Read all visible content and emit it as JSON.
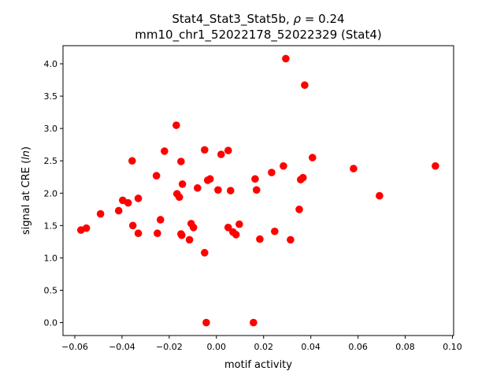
{
  "chart_data": {
    "type": "scatter",
    "title_line1": "Stat4_Stat3_Stat5b, ",
    "title_rho": "ρ",
    "title_rho_value": " = 0.24",
    "title_line2": "mm10_chr1_52022178_52022329 (Stat4)",
    "xlabel": "motif activity",
    "ylabel_prefix": "signal at CRE (",
    "ylabel_italic": "ln",
    "ylabel_suffix": ")",
    "xlim": [
      -0.065,
      0.1005
    ],
    "ylim": [
      -0.2,
      4.28
    ],
    "xticks": [
      -0.06,
      -0.04,
      -0.02,
      0.0,
      0.02,
      0.04,
      0.06,
      0.08,
      0.1
    ],
    "xtick_labels": [
      "−0.06",
      "−0.04",
      "−0.02",
      "0.00",
      "0.02",
      "0.04",
      "0.06",
      "0.08",
      "0.10"
    ],
    "yticks": [
      0.0,
      0.5,
      1.0,
      1.5,
      2.0,
      2.5,
      3.0,
      3.5,
      4.0
    ],
    "ytick_labels": [
      "0.0",
      "0.5",
      "1.0",
      "1.5",
      "2.0",
      "2.5",
      "3.0",
      "3.5",
      "4.0"
    ],
    "grid": false,
    "marker_color": "#ff0000",
    "x": [
      -0.0574,
      -0.0551,
      -0.0491,
      -0.0414,
      -0.0397,
      -0.0374,
      -0.0357,
      -0.0354,
      -0.0331,
      -0.0331,
      -0.0254,
      -0.025,
      -0.0237,
      -0.022,
      -0.017,
      -0.0167,
      -0.0157,
      -0.015,
      -0.015,
      -0.0147,
      -0.0144,
      -0.0114,
      -0.0107,
      -0.0097,
      -0.008,
      -0.005,
      -0.005,
      -0.0043,
      -0.0037,
      -0.0027,
      0.0007,
      0.002,
      0.005,
      0.005,
      0.006,
      0.007,
      0.0083,
      0.0097,
      0.0157,
      0.0164,
      0.017,
      0.0184,
      0.0234,
      0.0247,
      0.0284,
      0.0294,
      0.0314,
      0.0351,
      0.0357,
      0.0367,
      0.0374,
      0.0407,
      0.0581,
      0.0691,
      0.0928
    ],
    "y": [
      1.43,
      1.46,
      1.68,
      1.73,
      1.89,
      1.85,
      2.5,
      1.5,
      1.38,
      1.92,
      2.27,
      1.38,
      1.59,
      2.65,
      3.05,
      1.99,
      1.94,
      2.49,
      1.37,
      1.35,
      2.14,
      1.28,
      1.53,
      1.47,
      2.08,
      1.08,
      2.67,
      0.0,
      2.2,
      2.22,
      2.05,
      2.6,
      1.47,
      2.66,
      2.04,
      1.4,
      1.36,
      1.52,
      0.0,
      2.22,
      2.05,
      1.29,
      2.32,
      1.41,
      2.42,
      4.08,
      1.28,
      1.75,
      2.21,
      2.24,
      3.67,
      2.55,
      2.38,
      1.96,
      2.42
    ]
  }
}
